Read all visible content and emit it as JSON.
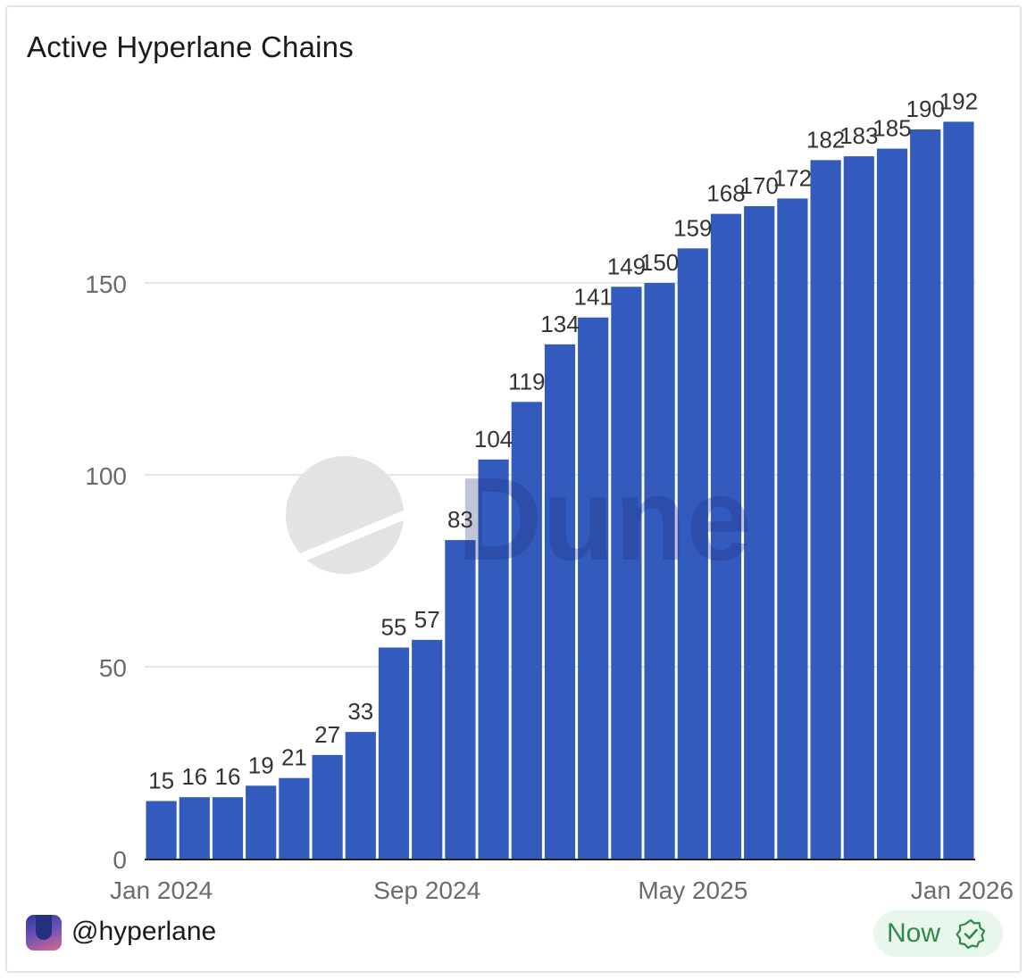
{
  "title": "Active Hyperlane Chains",
  "watermark": "Dune",
  "footer": {
    "handle": "@hyperlane",
    "status": "Now",
    "status_icon": "verified-check-icon"
  },
  "colors": {
    "bar": "#325bbd",
    "grid": "#e6e6e6",
    "badge_bg": "#e9f6ec",
    "badge_text": "#2f8a4a"
  },
  "chart_data": {
    "type": "bar",
    "title": "Active Hyperlane Chains",
    "xlabel": "",
    "ylabel": "",
    "categories": [
      "Jan 2024",
      "Feb 2024",
      "Mar 2024",
      "Apr 2024",
      "May 2024",
      "Jun 2024",
      "Jul 2024",
      "Aug 2024",
      "Sep 2024",
      "Oct 2024",
      "Nov 2024",
      "Dec 2024",
      "Jan 2025",
      "Feb 2025",
      "Mar 2025",
      "Apr 2025",
      "May 2025",
      "Jun 2025",
      "Jul 2025",
      "Aug 2025",
      "Sep 2025",
      "Oct 2025",
      "Nov 2025",
      "Dec 2025",
      "Jan 2026"
    ],
    "values": [
      15,
      16,
      16,
      19,
      21,
      27,
      33,
      55,
      57,
      83,
      104,
      119,
      134,
      141,
      149,
      150,
      159,
      168,
      170,
      172,
      182,
      183,
      185,
      190,
      192
    ],
    "x_ticks": [
      "Jan 2024",
      "Sep 2024",
      "May 2025",
      "Jan 2026"
    ],
    "y_ticks": [
      0,
      50,
      100,
      150
    ],
    "ylim": [
      0,
      200
    ],
    "grid": true,
    "data_labels": true,
    "legend": "none"
  }
}
